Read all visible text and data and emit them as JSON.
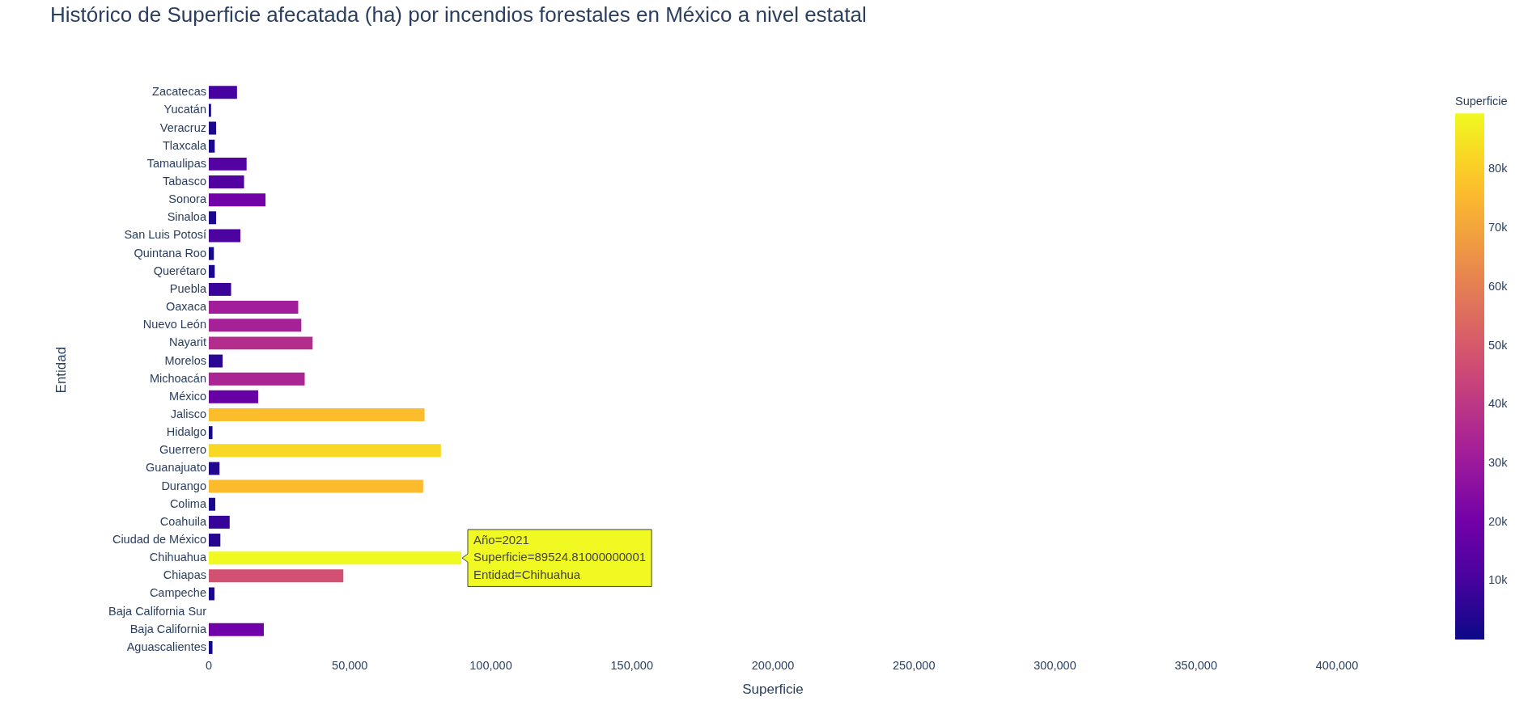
{
  "chart_data": {
    "type": "bar",
    "orientation": "horizontal",
    "title": "Histórico de Superficie afecatada (ha) por incendios forestales en México a nivel estatal",
    "xlabel": "Superficie",
    "ylabel": "Entidad",
    "clabel": "Superficie",
    "categories": [
      "Zacatecas",
      "Yucatán",
      "Veracruz",
      "Tlaxcala",
      "Tamaulipas",
      "Tabasco",
      "Sonora",
      "Sinaloa",
      "San Luis Potosí",
      "Quintana Roo",
      "Querétaro",
      "Puebla",
      "Oaxaca",
      "Nuevo León",
      "Nayarit",
      "Morelos",
      "Michoacán",
      "México",
      "Jalisco",
      "Hidalgo",
      "Guerrero",
      "Guanajuato",
      "Durango",
      "Colima",
      "Coahuila",
      "Ciudad de México",
      "Chihuahua",
      "Chiapas",
      "Campeche",
      "Baja California Sur",
      "Baja California",
      "Aguascalientes"
    ],
    "values": [
      10000,
      800,
      2600,
      2100,
      13400,
      12500,
      20100,
      2600,
      11200,
      1800,
      2100,
      7900,
      31700,
      32800,
      36800,
      4900,
      34000,
      17500,
      76500,
      1300,
      82300,
      3800,
      76000,
      2300,
      7400,
      4100,
      89524.81,
      47700,
      2000,
      0,
      19500,
      1300
    ],
    "colors": [
      "#46039f",
      "#120889",
      "#1c078d",
      "#19078c",
      "#5502a2",
      "#5102a1",
      "#7301a8",
      "#1c078d",
      "#4c03a0",
      "#17078b",
      "#19078c",
      "#3a049a",
      "#a21d9a",
      "#a62097",
      "#b32d8d",
      "#290693",
      "#aa2494",
      "#6701a6",
      "#fcbd2c",
      "#14078a",
      "#f9d725",
      "#230690",
      "#fcbb2d",
      "#1a078d",
      "#370499",
      "#240691",
      "#f0f921",
      "#d25071",
      "#18078c",
      "#0d0887",
      "#7001a8",
      "#14078a"
    ],
    "xlim": [
      0,
      400000
    ],
    "xticks": [
      0,
      {
        "value": 50000,
        "label": "50,000"
      },
      {
        "value": 100000,
        "label": "100,000"
      },
      {
        "value": 150000,
        "label": "150,000"
      },
      {
        "value": 200000,
        "label": "200,000"
      },
      {
        "value": 250000,
        "label": "250,000"
      },
      {
        "value": 300000,
        "label": "300,000"
      },
      {
        "value": 350000,
        "label": "350,000"
      },
      {
        "value": 400000,
        "label": "400,000"
      }
    ],
    "clim": [
      0,
      89524.81
    ],
    "cticks": [
      {
        "value": 10000,
        "label": "10k"
      },
      {
        "value": 20000,
        "label": "20k"
      },
      {
        "value": 30000,
        "label": "30k"
      },
      {
        "value": 40000,
        "label": "40k"
      },
      {
        "value": 50000,
        "label": "50k"
      },
      {
        "value": 60000,
        "label": "60k"
      },
      {
        "value": 70000,
        "label": "70k"
      },
      {
        "value": 80000,
        "label": "80k"
      }
    ],
    "annotations": [
      {
        "text": "Año=2021\nSuperficie=89524.81000000001\nEntidad=Chihuahua",
        "x": 89524.81,
        "y": "Chihuahua"
      }
    ]
  }
}
